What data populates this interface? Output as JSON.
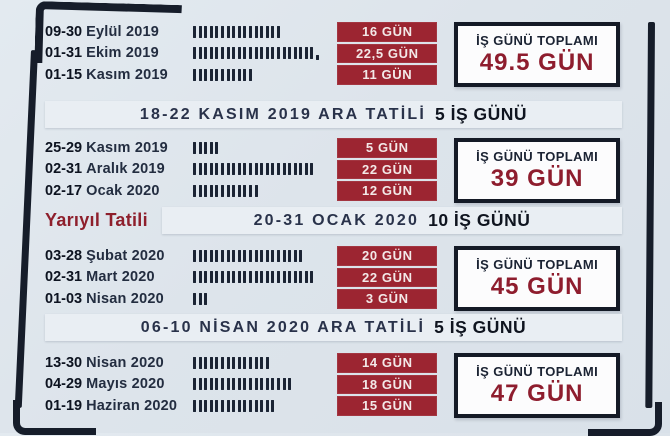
{
  "title_note": "2019-2020 school year work-day calendar infographic",
  "colors": {
    "background": "#dde4eb",
    "frame_dark": "#161d2a",
    "badge_red": "#9c2531",
    "total_red": "#8e1d2e",
    "text_navy": "#1f2737",
    "banner_strip": "#e9eef3",
    "box_white": "#fcfcfd"
  },
  "groups": [
    {
      "rows": [
        {
          "range": "09-30",
          "month": "Eylül 2019",
          "tally": 16,
          "days": "16 GÜN"
        },
        {
          "range": "01-31",
          "month": "Ekim 2019",
          "tally": 22.5,
          "days": "22,5 GÜN"
        },
        {
          "range": "01-15",
          "month": "Kasım 2019",
          "tally": 11,
          "days": "11 GÜN"
        }
      ],
      "total_label": "İŞ GÜNÜ TOPLAMI",
      "total": "49.5 GÜN"
    },
    {
      "rows": [
        {
          "range": "25-29",
          "month": "Kasım 2019",
          "tally": 5,
          "days": "5 GÜN"
        },
        {
          "range": "02-31",
          "month": "Aralık 2019",
          "tally": 22,
          "days": "22 GÜN"
        },
        {
          "range": "02-17",
          "month": "Ocak 2020",
          "tally": 12,
          "days": "12 GÜN"
        }
      ],
      "total_label": "İŞ GÜNÜ TOPLAMI",
      "total": "39 GÜN"
    },
    {
      "rows": [
        {
          "range": "03-28",
          "month": "Şubat 2020",
          "tally": 20,
          "days": "20 GÜN"
        },
        {
          "range": "02-31",
          "month": "Mart 2020",
          "tally": 22,
          "days": "22 GÜN"
        },
        {
          "range": "01-03",
          "month": "Nisan 2020",
          "tally": 3,
          "days": "3 GÜN"
        }
      ],
      "total_label": "İŞ GÜNÜ TOPLAMI",
      "total": "45 GÜN"
    },
    {
      "rows": [
        {
          "range": "13-30",
          "month": "Nisan 2020",
          "tally": 14,
          "days": "14 GÜN"
        },
        {
          "range": "04-29",
          "month": "Mayıs 2020",
          "tally": 18,
          "days": "18 GÜN"
        },
        {
          "range": "01-19",
          "month": "Haziran 2020",
          "tally": 15,
          "days": "15 GÜN"
        }
      ],
      "total_label": "İŞ GÜNÜ TOPLAMI",
      "total": "47 GÜN"
    }
  ],
  "banners": [
    {
      "prefix": "",
      "text": "18-22 KASIM 2019 ARA TATİLİ",
      "bold": "5 İŞ GÜNÜ"
    },
    {
      "prefix": "Yarıyıl Tatili",
      "text": "20-31 OCAK 2020",
      "bold": "10 İŞ GÜNÜ"
    },
    {
      "prefix": "",
      "text": "06-10 NİSAN 2020 ARA TATİLİ",
      "bold": "5 İŞ GÜNÜ"
    }
  ]
}
